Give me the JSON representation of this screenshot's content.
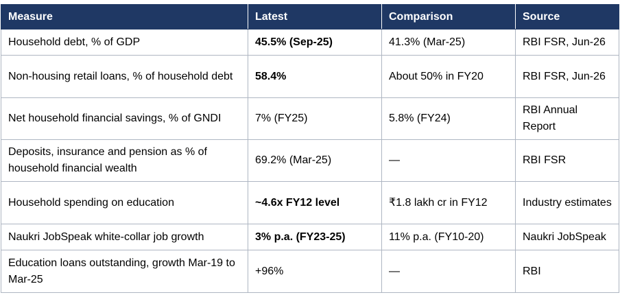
{
  "table": {
    "headers": [
      "Measure",
      "Latest",
      "Comparison",
      "Source"
    ],
    "rows": [
      {
        "measure": "Household debt, % of GDP",
        "latest": "45.5% (Sep-25)",
        "comparison": "41.3% (Mar-25)",
        "source": "RBI FSR, Jun-26"
      },
      {
        "measure": "Non-housing retail loans, % of household debt",
        "latest": "58.4%",
        "comparison": "About 50% in FY20",
        "source": "RBI FSR, Jun-26"
      },
      {
        "measure": "Net household financial savings, % of GNDI",
        "latest": "7% (FY25)",
        "comparison": "5.8% (FY24)",
        "source": "RBI Annual Report"
      },
      {
        "measure": "Deposits, insurance and pension as % of household financial wealth",
        "latest": "69.2% (Mar-25)",
        "comparison": "—",
        "source": "RBI FSR"
      },
      {
        "measure": "Household spending on education",
        "latest": "~4.6x FY12 level",
        "comparison": "₹1.8 lakh cr in FY12",
        "source": "Industry estimates"
      },
      {
        "measure": "Naukri JobSpeak white-collar job growth",
        "latest": "3% p.a. (FY23-25)",
        "comparison": "11% p.a. (FY10-20)",
        "source": "Naukri JobSpeak"
      },
      {
        "measure": "Education loans outstanding, growth Mar-19 to Mar-25",
        "latest": "+96%",
        "comparison": "—",
        "source": "RBI"
      }
    ]
  }
}
